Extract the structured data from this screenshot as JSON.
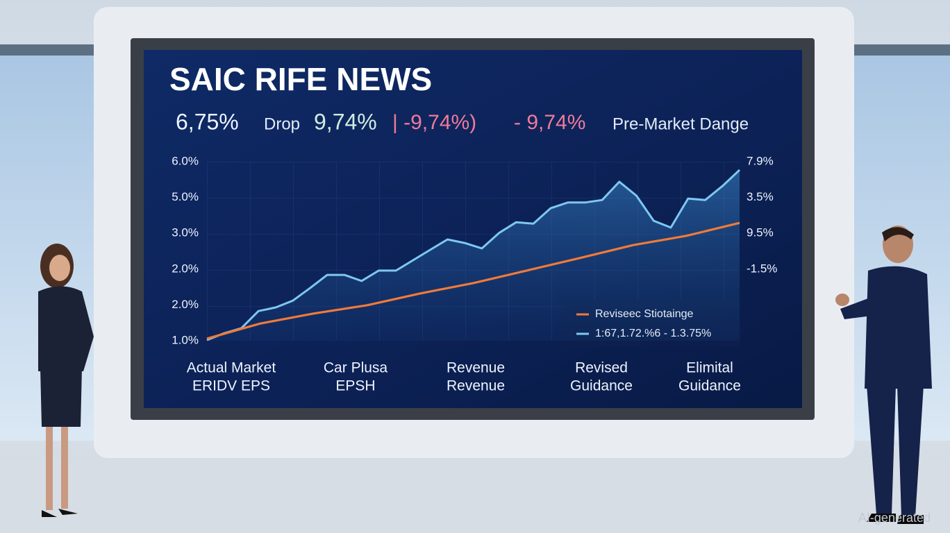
{
  "chart_data": {
    "type": "line",
    "title": "SAIC RIFE NEWS",
    "headline": [
      "6,75%",
      "Drop",
      "9,74%",
      "| -9,74%)",
      "- 9,74%",
      "Pre-Market Dange"
    ],
    "ylim": [
      1,
      6
    ],
    "y_labels": [
      "6.0%",
      "5.0%",
      "3.0%",
      "2.0%",
      "2.0%",
      "1.0%"
    ],
    "y2_labels": [
      "7.9%",
      "3.5%",
      "9.5%",
      "-1.5%"
    ],
    "x_labels": [
      [
        "Actual Market",
        "ERIDV EPS"
      ],
      [
        "Car Plusa",
        "EPSH"
      ],
      [
        "Revenue",
        "Revenue"
      ],
      [
        "Revised",
        "Guidance"
      ],
      [
        "Elimital",
        "Guidance"
      ]
    ],
    "series": [
      {
        "name": "1:67,1.72.%6 - 1.3.75%",
        "color": "#7ec8f0",
        "values": [
          1.02,
          1.21,
          1.35,
          1.83,
          1.93,
          2.12,
          2.47,
          2.84,
          2.84,
          2.67,
          2.96,
          2.96,
          3.25,
          3.54,
          3.83,
          3.73,
          3.58,
          4.01,
          4.31,
          4.27,
          4.7,
          4.86,
          4.86,
          4.93,
          5.44,
          5.05,
          4.35,
          4.16,
          4.97,
          4.93,
          5.32,
          5.77
        ]
      },
      {
        "name": "Reviseec Stiotainge",
        "color": "#f07a3a",
        "values": [
          1.06,
          1.48,
          1.76,
          1.99,
          2.32,
          2.61,
          2.96,
          3.31,
          3.67,
          3.93,
          4.29
        ]
      }
    ],
    "legend": "lower right",
    "watermark": "AI-generated"
  }
}
